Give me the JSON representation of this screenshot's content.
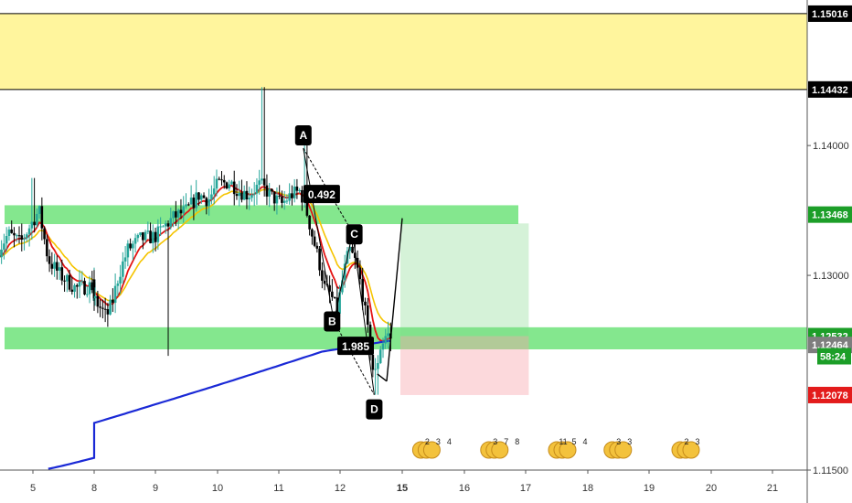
{
  "chart_data": {
    "type": "candlestick",
    "x_axis": {
      "ticks": [
        "5",
        "8",
        "9",
        "10",
        "11",
        "12",
        "15",
        "16",
        "17",
        "18",
        "19",
        "20",
        "21"
      ],
      "highlighted_tick": "15"
    },
    "y_axis": {
      "range": [
        1.115,
        1.151
      ],
      "ticks": [
        "1.15016",
        "1.14432",
        "1.14000",
        "1.13468",
        "1.13000",
        "1.12532",
        "1.12464",
        "1.12078",
        "1.11500"
      ],
      "countdown": "58:24"
    },
    "colors": {
      "up": "#26a69a",
      "down": "#000000",
      "ema_fast": "#e31414",
      "ema_slow": "#f5c400",
      "ma_long": "#1a29d6",
      "supply_zone": "#fff59d",
      "green_zone": "#6fe37a",
      "label_black": "#000000",
      "label_green": "#1c9e28",
      "label_gray": "#7e7e7e",
      "label_red": "#e31b1b"
    },
    "price_labels": [
      {
        "text": "1.15016",
        "value": 1.15016,
        "style": "black"
      },
      {
        "text": "1.14432",
        "value": 1.14432,
        "style": "black"
      },
      {
        "text": "1.13468",
        "value": 1.13468,
        "style": "green"
      },
      {
        "text": "1.12532",
        "value": 1.12532,
        "style": "green"
      },
      {
        "text": "1.12464",
        "value": 1.12464,
        "style": "gray"
      },
      {
        "text": "1.12078",
        "value": 1.12078,
        "style": "red"
      }
    ],
    "zones": [
      {
        "kind": "supply",
        "from": 1.14432,
        "to": 1.15016
      },
      {
        "kind": "resistance",
        "from": 1.13395,
        "to": 1.1354
      },
      {
        "kind": "support",
        "from": 1.1243,
        "to": 1.126
      }
    ],
    "harmonic_points": [
      {
        "label": "A",
        "date": 11.4,
        "price": 1.1398
      },
      {
        "label": "B",
        "date": 11.9,
        "price": 1.12645
      },
      {
        "label": "C",
        "date": 12.2,
        "price": 1.1333
      },
      {
        "label": "D",
        "date": 12.55,
        "price": 1.1208
      }
    ],
    "ratio_labels": [
      {
        "text": "0.492",
        "date": 11.7,
        "price": 1.1362
      },
      {
        "text": "1.985",
        "date": 12.25,
        "price": 1.1245
      }
    ],
    "projection": {
      "from": {
        "date": 12.75,
        "price": 1.12185
      },
      "to": {
        "date": 13.35,
        "price": 1.1344
      }
    },
    "position": {
      "entry": 1.12532,
      "target": 1.134,
      "stop": 1.12078,
      "start_date": 13.0,
      "end_date": 17.05
    },
    "event_markers": [
      {
        "date": 15.3,
        "labels": [
          "2",
          "3",
          "4"
        ]
      },
      {
        "date": 16.4,
        "labels": [
          "3",
          "7",
          "8"
        ]
      },
      {
        "date": 17.5,
        "labels": [
          "11",
          "5",
          "4"
        ]
      },
      {
        "date": 18.4,
        "labels": [
          "3",
          "3"
        ]
      },
      {
        "date": 19.5,
        "labels": [
          "2",
          "3"
        ]
      }
    ]
  }
}
